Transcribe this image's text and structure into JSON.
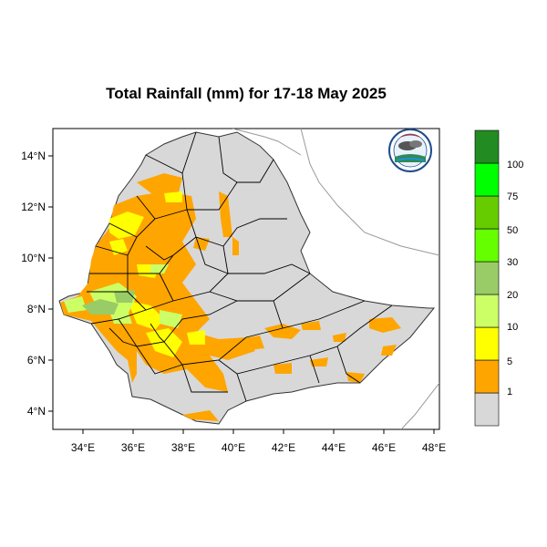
{
  "title": "Total Rainfall (mm) for 17-18 May 2025",
  "axes": {
    "lon_ticks": [
      "34°E",
      "36°E",
      "38°E",
      "40°E",
      "42°E",
      "44°E",
      "46°E",
      "48°E"
    ],
    "lat_ticks": [
      "14°N",
      "12°N",
      "10°N",
      "8°N",
      "6°N",
      "4°N"
    ],
    "lon_range": [
      32.8,
      48.2
    ],
    "lat_range": [
      3.2,
      15.0
    ]
  },
  "legend": {
    "labels": [
      "1",
      "5",
      "10",
      "20",
      "30",
      "50",
      "75",
      "100"
    ],
    "colors": [
      "#d8d8d8",
      "#ffa500",
      "#ffff00",
      "#ccff66",
      "#99cc66",
      "#66ff00",
      "#66cc00",
      "#00ff00",
      "#228b22"
    ]
  },
  "colors": {
    "land": "#d8d8d8",
    "orange": "#ffa500",
    "yellow": "#ffff00",
    "lightgreen": "#ccff66",
    "olive": "#99cc66"
  },
  "logo_icon": "ethiopian-meteorology-institute-logo"
}
